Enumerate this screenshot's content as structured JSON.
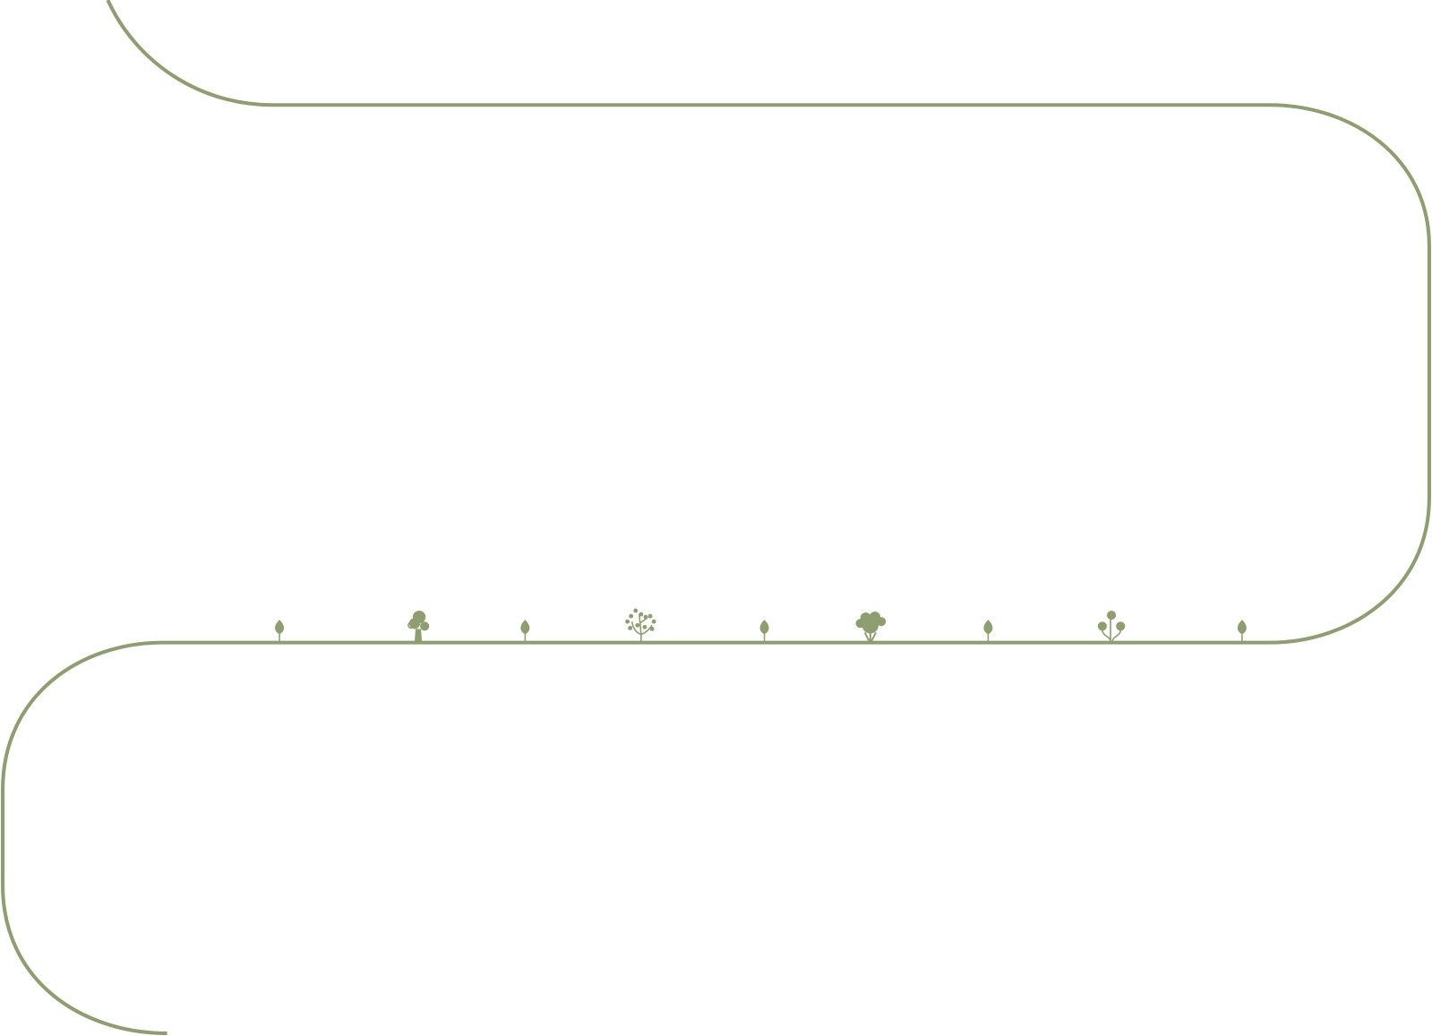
{
  "colors": {
    "path": "#8f9e6e",
    "background": "#ffffff"
  },
  "trees": [
    {
      "icon": "leaf-sprout-icon"
    },
    {
      "icon": "round-tree-icon"
    },
    {
      "icon": "leaf-sprout-icon"
    },
    {
      "icon": "branching-tree-icon"
    },
    {
      "icon": "leaf-sprout-icon"
    },
    {
      "icon": "bushy-tree-icon"
    },
    {
      "icon": "leaf-sprout-icon"
    },
    {
      "icon": "mushroom-tree-icon"
    },
    {
      "icon": "leaf-sprout-icon"
    }
  ]
}
